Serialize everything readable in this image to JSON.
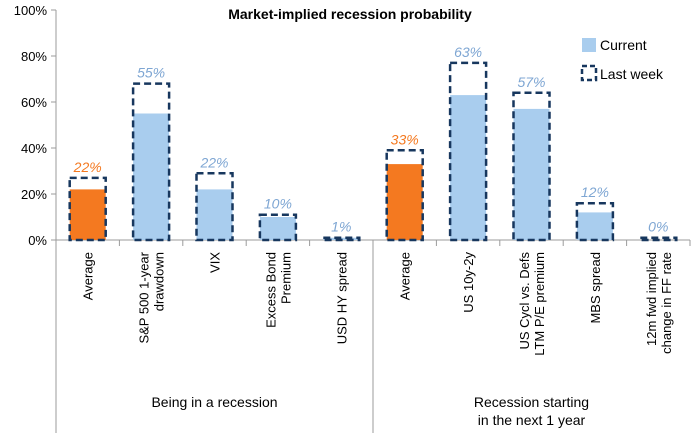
{
  "chart_data": {
    "type": "bar",
    "title": "Market-implied recession probability",
    "ylim": [
      0,
      100
    ],
    "yticks": [
      0,
      20,
      40,
      60,
      80,
      100
    ],
    "ytick_labels": [
      "0%",
      "20%",
      "40%",
      "60%",
      "80%",
      "100%"
    ],
    "categories": [
      [
        "Average"
      ],
      [
        "S&P 500 1-year",
        "drawdown"
      ],
      [
        "VIX"
      ],
      [
        "Excess Bond",
        "Premium"
      ],
      [
        "USD HY spread"
      ],
      [
        "Average"
      ],
      [
        "US 10y-2y"
      ],
      [
        "US Cycl vs. Defs",
        "LTM P/E premium"
      ],
      [
        "MBS spread"
      ],
      [
        "12m fwd implied",
        "change in FF rate"
      ]
    ],
    "groups": [
      {
        "label": [
          "Being in a recession"
        ],
        "start": 0,
        "end": 4
      },
      {
        "label": [
          "Recession starting",
          "in the next 1 year"
        ],
        "start": 5,
        "end": 9
      }
    ],
    "series": [
      {
        "name": "Current",
        "values": [
          22,
          55,
          22,
          10,
          1,
          33,
          63,
          57,
          12,
          0
        ]
      },
      {
        "name": "Last week",
        "values": [
          27,
          68,
          29,
          11,
          1,
          39,
          77,
          64,
          16,
          1
        ]
      }
    ],
    "data_labels": [
      "22%",
      "55%",
      "22%",
      "10%",
      "1%",
      "33%",
      "63%",
      "57%",
      "12%",
      "0%"
    ],
    "highlight": [
      true,
      false,
      false,
      false,
      false,
      true,
      false,
      false,
      false,
      false
    ],
    "legend_position": "top-right",
    "grid": false
  },
  "colors": {
    "current": "#a9cdee",
    "average": "#f47920",
    "last_week_border": "#17375e",
    "label_blue": "#7ea6d3",
    "label_orange": "#f47920",
    "axis": "#9b9b9b"
  }
}
